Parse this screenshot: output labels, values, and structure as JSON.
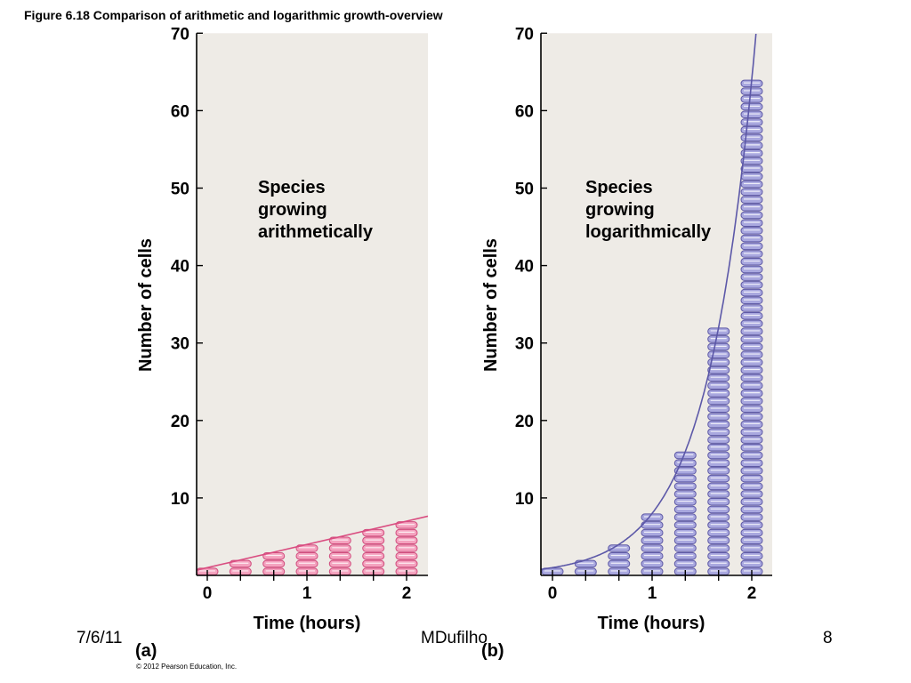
{
  "slide": {
    "title": "Figure 6.18  Comparison of arithmetic and logarithmic growth-overview",
    "footer_date": "7/6/11",
    "footer_author": "MDufilho",
    "footer_page": "8",
    "copyright": "© 2012 Pearson Education, Inc."
  },
  "chart_data": [
    {
      "type": "bar",
      "panel_label": "(a)",
      "annotation": "Species\ngrowing\narithmetically",
      "xlabel": "Time (hours)",
      "ylabel": "Number of cells",
      "x_ticks": [
        0,
        1,
        2
      ],
      "y_ticks": [
        10,
        20,
        30,
        40,
        50,
        60,
        70
      ],
      "xlim": [
        0,
        2.2
      ],
      "ylim": [
        0,
        70
      ],
      "x": [
        0,
        0.333,
        0.667,
        1,
        1.333,
        1.667,
        2
      ],
      "values": [
        1,
        2,
        3,
        4,
        5,
        6,
        7
      ],
      "trend": "linear",
      "grid": false,
      "colors": {
        "cell_fill": "#f4a3bf",
        "cell_stroke": "#d14d7e",
        "line": "#d94c80",
        "background": "#eeebe6"
      }
    },
    {
      "type": "bar",
      "panel_label": "(b)",
      "annotation": "Species\ngrowing\nlogarithmically",
      "xlabel": "Time (hours)",
      "ylabel": "Number of cells",
      "x_ticks": [
        0,
        1,
        2
      ],
      "y_ticks": [
        10,
        20,
        30,
        40,
        50,
        60,
        70
      ],
      "xlim": [
        0,
        2.2
      ],
      "ylim": [
        0,
        70
      ],
      "x": [
        0,
        0.333,
        0.667,
        1,
        1.333,
        1.667,
        2
      ],
      "values": [
        1,
        2,
        4,
        8,
        16,
        32,
        64
      ],
      "trend": "exponential",
      "grid": false,
      "colors": {
        "cell_fill": "#a9a8df",
        "cell_stroke": "#5f5aa6",
        "line": "#5c58a8",
        "background": "#eeebe6"
      }
    }
  ]
}
